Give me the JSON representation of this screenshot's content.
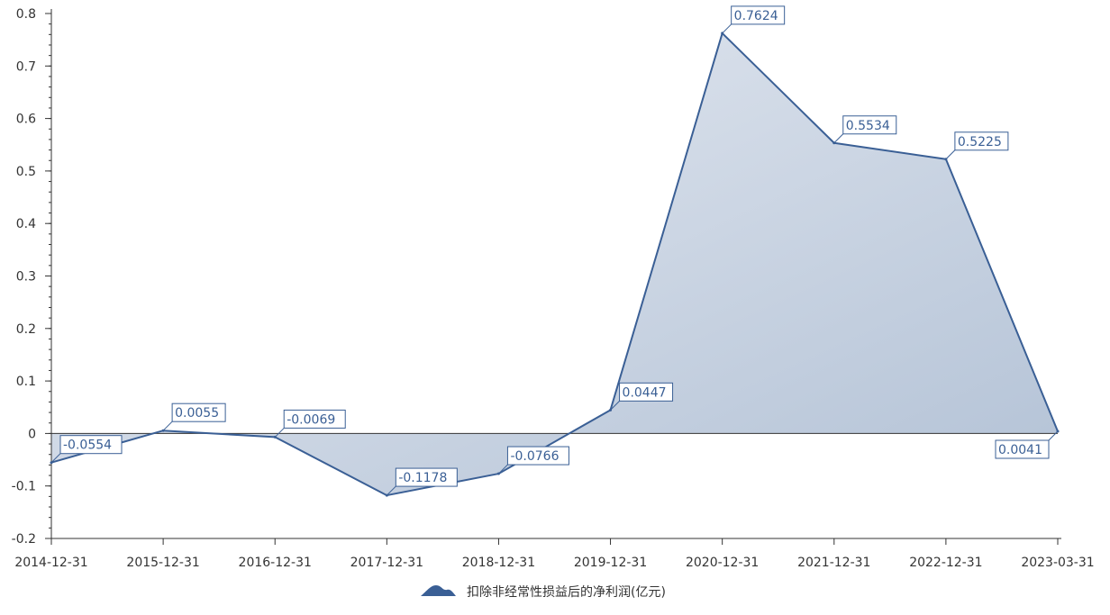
{
  "chart_data": {
    "type": "area",
    "categories": [
      "2014-12-31",
      "2015-12-31",
      "2016-12-31",
      "2017-12-31",
      "2018-12-31",
      "2019-12-31",
      "2020-12-31",
      "2021-12-31",
      "2022-12-31",
      "2023-03-31"
    ],
    "series": [
      {
        "name": "扣除非经常性损益后的净利润(亿元)",
        "values": [
          -0.0554,
          0.0055,
          -0.0069,
          -0.1178,
          -0.0766,
          0.0447,
          0.7624,
          0.5534,
          0.5225,
          0.0041
        ],
        "labels": [
          "-0.0554",
          "0.0055",
          "-0.0069",
          "-0.1178",
          "-0.0766",
          "0.0447",
          "0.7624",
          "0.5534",
          "0.5225",
          "0.0041"
        ]
      }
    ],
    "ylim": [
      -0.2,
      0.8
    ],
    "yticks": [
      -0.2,
      -0.1,
      0,
      0.1,
      0.2,
      0.3,
      0.4,
      0.5,
      0.6,
      0.7,
      0.8
    ],
    "ytick_labels": [
      "-0.2",
      "-0.1",
      "0",
      "0.1",
      "0.2",
      "0.3",
      "0.4",
      "0.5",
      "0.6",
      "0.7",
      "0.8"
    ],
    "grid": false,
    "legend_position": "bottom-center",
    "colors": {
      "line": "#3a5f95",
      "fill_top": "#e6eaf2",
      "fill_bottom": "#b4c3d7",
      "axis": "#333333"
    }
  }
}
